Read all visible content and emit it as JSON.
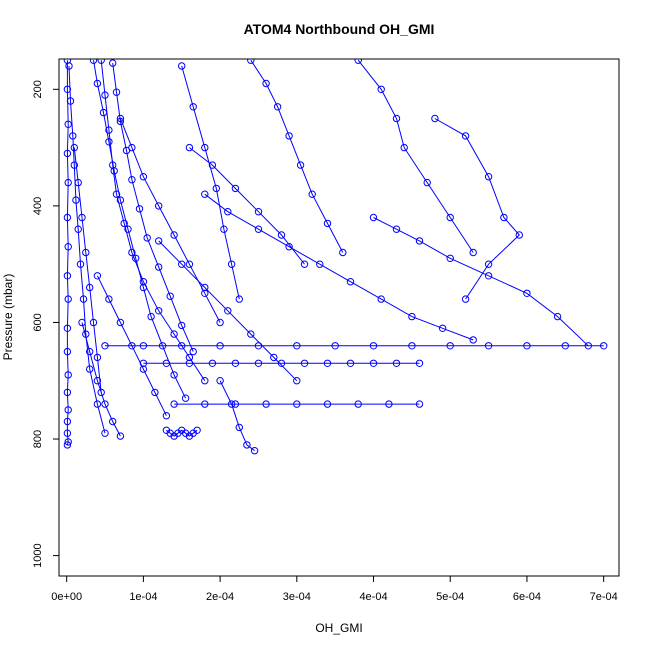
{
  "chart_data": {
    "type": "scatter",
    "title": "ATOM4 Northbound OH_GMI",
    "xlabel": "OH_GMI",
    "ylabel": "Pressure (mbar)",
    "xlim": [
      -1e-05,
      0.00072
    ],
    "ylim": [
      1035,
      148
    ],
    "y_reversed": true,
    "x_ticks": [
      0,
      0.0001,
      0.0002,
      0.0003,
      0.0004,
      0.0005,
      0.0006,
      0.0007
    ],
    "x_tick_labels": [
      "0e+00",
      "1e-04",
      "2e-04",
      "3e-04",
      "4e-04",
      "5e-04",
      "6e-04",
      "7e-04"
    ],
    "y_ticks": [
      200,
      400,
      600,
      800,
      1000
    ],
    "y_tick_labels": [
      "200",
      "400",
      "600",
      "800",
      "1000"
    ],
    "series_color": "#0000ff",
    "marker": "open-circle",
    "connected": true,
    "series": [
      {
        "x": [
          1e-06,
          1e-06,
          2e-06,
          1e-06,
          2e-06,
          1e-06,
          2e-06,
          1e-06,
          2e-06,
          1e-06,
          1e-06,
          2e-06,
          1e-06,
          2e-06,
          1e-06,
          1e-06,
          2e-06,
          1e-06
        ],
        "y": [
          150,
          200,
          260,
          310,
          360,
          420,
          470,
          520,
          560,
          610,
          650,
          690,
          720,
          750,
          770,
          790,
          805,
          810
        ]
      },
      {
        "x": [
          3e-06,
          5e-06,
          8e-06,
          1e-05,
          1.2e-05,
          1.5e-05,
          1.8e-05,
          2.2e-05,
          2.5e-05,
          3e-05,
          4e-05,
          5e-05
        ],
        "y": [
          160,
          220,
          280,
          330,
          390,
          440,
          500,
          560,
          620,
          680,
          740,
          790
        ]
      },
      {
        "x": [
          4.5e-05,
          5e-05,
          5.5e-05,
          6e-05,
          6.5e-05,
          7.5e-05,
          8.5e-05,
          0.0001,
          0.00012,
          0.00014,
          0.00016,
          0.00018
        ],
        "y": [
          150,
          210,
          270,
          330,
          380,
          430,
          480,
          530,
          580,
          620,
          660,
          700
        ]
      },
      {
        "x": [
          6e-05,
          6.5e-05,
          7e-05,
          7.8e-05,
          8.5e-05,
          9.5e-05,
          0.000105,
          0.00012,
          0.000135,
          0.00015,
          0.000165
        ],
        "y": [
          155,
          205,
          255,
          305,
          355,
          405,
          455,
          505,
          555,
          605,
          650
        ]
      },
      {
        "x": [
          3.5e-05,
          4e-05,
          4.8e-05,
          5.5e-05,
          6.2e-05,
          7e-05,
          8e-05,
          9e-05,
          0.0001,
          0.00011,
          0.000125,
          0.00014,
          0.000155
        ],
        "y": [
          150,
          190,
          240,
          290,
          340,
          390,
          440,
          490,
          540,
          590,
          640,
          690,
          730
        ]
      },
      {
        "x": [
          0.00015,
          0.000165,
          0.00018,
          0.000195,
          0.000205,
          0.000215,
          0.000225
        ],
        "y": [
          160,
          230,
          300,
          370,
          440,
          500,
          560
        ]
      },
      {
        "x": [
          0.00024,
          0.00026,
          0.000275,
          0.00029,
          0.000305,
          0.00032,
          0.00034,
          0.00036
        ],
        "y": [
          150,
          190,
          230,
          280,
          330,
          380,
          430,
          480
        ]
      },
      {
        "x": [
          0.00038,
          0.00041,
          0.00043,
          0.00044,
          0.00047,
          0.0005,
          0.00053
        ],
        "y": [
          150,
          200,
          250,
          300,
          360,
          420,
          480
        ]
      },
      {
        "x": [
          0.00048,
          0.00052,
          0.00055,
          0.00057,
          0.00059,
          0.00055,
          0.00052
        ],
        "y": [
          250,
          280,
          350,
          420,
          450,
          500,
          560
        ]
      },
      {
        "x": [
          0.0004,
          0.00043,
          0.00046,
          0.0005,
          0.00055,
          0.0006,
          0.00064,
          0.00068
        ],
        "y": [
          420,
          440,
          460,
          490,
          520,
          550,
          590,
          640
        ]
      },
      {
        "x": [
          5e-05,
          0.0001,
          0.00015,
          0.0002,
          0.00025,
          0.0003,
          0.00035,
          0.0004,
          0.00045,
          0.0005,
          0.00055,
          0.0006,
          0.00065,
          0.0007
        ],
        "y": [
          640,
          640,
          640,
          640,
          640,
          640,
          640,
          640,
          640,
          640,
          640,
          640,
          640,
          640
        ]
      },
      {
        "x": [
          0.0001,
          0.00013,
          0.00016,
          0.00019,
          0.00022,
          0.00025,
          0.00028,
          0.00031,
          0.00034,
          0.00037,
          0.0004,
          0.00043,
          0.00046
        ],
        "y": [
          670,
          670,
          670,
          670,
          670,
          670,
          670,
          670,
          670,
          670,
          670,
          670,
          670
        ]
      },
      {
        "x": [
          0.00014,
          0.00018,
          0.00022,
          0.00026,
          0.0003,
          0.00034,
          0.00038,
          0.00042,
          0.00046
        ],
        "y": [
          740,
          740,
          740,
          740,
          740,
          740,
          740,
          740,
          740
        ]
      },
      {
        "x": [
          0.00013,
          0.000135,
          0.00014,
          0.000145,
          0.00015,
          0.000155,
          0.00016,
          0.000165,
          0.00017
        ],
        "y": [
          785,
          790,
          795,
          790,
          785,
          790,
          795,
          790,
          785
        ]
      },
      {
        "x": [
          0.0002,
          0.000215,
          0.000225,
          0.000235,
          0.000245
        ],
        "y": [
          700,
          740,
          780,
          810,
          820
        ]
      },
      {
        "x": [
          4e-05,
          5.5e-05,
          7e-05,
          8.5e-05,
          0.0001,
          0.000115,
          0.00013
        ],
        "y": [
          520,
          560,
          600,
          640,
          680,
          720,
          760
        ]
      },
      {
        "x": [
          2e-05,
          3e-05,
          4e-05,
          5e-05,
          6e-05,
          7e-05
        ],
        "y": [
          600,
          650,
          700,
          740,
          770,
          795
        ]
      },
      {
        "x": [
          0.00016,
          0.00019,
          0.00022,
          0.00025,
          0.00028,
          0.00031
        ],
        "y": [
          300,
          330,
          370,
          410,
          450,
          500
        ]
      },
      {
        "x": [
          0.00018,
          0.00021,
          0.00025,
          0.00029,
          0.00033,
          0.00037,
          0.00041,
          0.00045,
          0.00049,
          0.00053
        ],
        "y": [
          380,
          410,
          440,
          470,
          500,
          530,
          560,
          590,
          610,
          630
        ]
      },
      {
        "x": [
          0.00012,
          0.00015,
          0.00018,
          0.00021,
          0.00024,
          0.00027,
          0.0003
        ],
        "y": [
          460,
          500,
          540,
          580,
          620,
          660,
          700
        ]
      },
      {
        "x": [
          7e-05,
          8.5e-05,
          0.0001,
          0.00012,
          0.00014,
          0.00016,
          0.00018,
          0.0002
        ],
        "y": [
          250,
          300,
          350,
          400,
          450,
          500,
          550,
          600
        ]
      },
      {
        "x": [
          1e-05,
          1.5e-05,
          2e-05,
          2.5e-05,
          3e-05,
          3.5e-05,
          4e-05,
          4.5e-05
        ],
        "y": [
          300,
          360,
          420,
          480,
          540,
          600,
          660,
          720
        ]
      }
    ]
  }
}
